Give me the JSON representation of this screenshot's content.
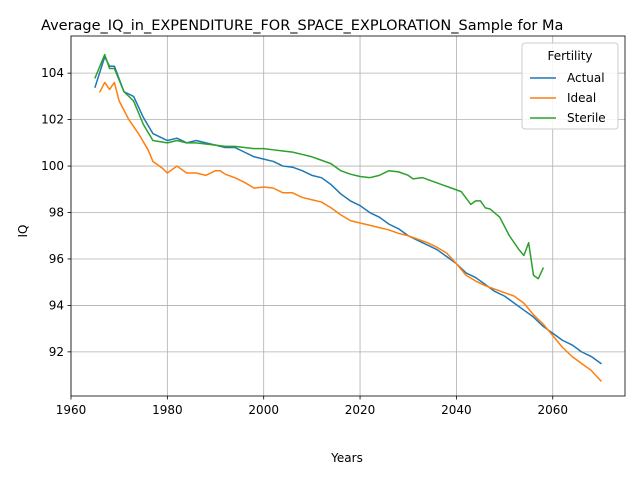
{
  "chart_data": {
    "type": "line",
    "title": "Average_IQ_in_EXPENDITURE_FOR_SPACE_EXPLORATION_Sample for Ma",
    "xlabel": "Years",
    "ylabel": "IQ",
    "xlim": [
      1960,
      2075
    ],
    "ylim": [
      90.1,
      105.6
    ],
    "xticks": [
      1960,
      1980,
      2000,
      2020,
      2040,
      2060
    ],
    "yticks": [
      92,
      94,
      96,
      98,
      100,
      102,
      104
    ],
    "grid": true,
    "legend": {
      "title": "Fertility",
      "position": "top-right"
    },
    "series": [
      {
        "name": "Actual",
        "color": "#1f77b4",
        "x": [
          1965,
          1967,
          1968,
          1969,
          1971,
          1973,
          1975,
          1977,
          1980,
          1982,
          1984,
          1986,
          1988,
          1990,
          1992,
          1994,
          1996,
          1998,
          2000,
          2002,
          2004,
          2006,
          2008,
          2010,
          2012,
          2014,
          2016,
          2018,
          2020,
          2022,
          2024,
          2026,
          2028,
          2030,
          2032,
          2034,
          2036,
          2038,
          2040,
          2042,
          2044,
          2046,
          2048,
          2050,
          2052,
          2054,
          2056,
          2058,
          2060,
          2062,
          2064,
          2066,
          2068,
          2070
        ],
        "y": [
          103.4,
          104.7,
          104.3,
          104.3,
          103.2,
          103.0,
          102.1,
          101.4,
          101.1,
          101.2,
          101.0,
          101.1,
          101.0,
          100.9,
          100.8,
          100.8,
          100.6,
          100.4,
          100.3,
          100.2,
          100.0,
          99.95,
          99.8,
          99.6,
          99.5,
          99.2,
          98.8,
          98.5,
          98.3,
          98.0,
          97.8,
          97.5,
          97.3,
          97.0,
          96.8,
          96.6,
          96.4,
          96.1,
          95.8,
          95.4,
          95.2,
          94.9,
          94.6,
          94.4,
          94.1,
          93.8,
          93.5,
          93.1,
          92.8,
          92.5,
          92.3,
          92.0,
          91.8,
          91.5
        ]
      },
      {
        "name": "Ideal",
        "color": "#ff7f0e",
        "x": [
          1966,
          1967,
          1968,
          1969,
          1970,
          1972,
          1974,
          1976,
          1977,
          1979,
          1980,
          1982,
          1984,
          1986,
          1988,
          1990,
          1991,
          1992,
          1994,
          1996,
          1998,
          2000,
          2002,
          2004,
          2006,
          2008,
          2010,
          2012,
          2014,
          2016,
          2018,
          2020,
          2022,
          2024,
          2026,
          2028,
          2030,
          2032,
          2034,
          2036,
          2038,
          2040,
          2042,
          2044,
          2046,
          2048,
          2050,
          2052,
          2054,
          2056,
          2058,
          2060,
          2062,
          2064,
          2066,
          2068,
          2070
        ],
        "y": [
          103.2,
          103.6,
          103.3,
          103.6,
          102.8,
          102.0,
          101.4,
          100.7,
          100.2,
          99.9,
          99.7,
          100.0,
          99.7,
          99.7,
          99.6,
          99.8,
          99.8,
          99.65,
          99.5,
          99.3,
          99.05,
          99.1,
          99.05,
          98.85,
          98.85,
          98.65,
          98.55,
          98.45,
          98.2,
          97.9,
          97.65,
          97.55,
          97.45,
          97.35,
          97.25,
          97.1,
          97.0,
          96.85,
          96.7,
          96.5,
          96.25,
          95.8,
          95.3,
          95.05,
          94.85,
          94.7,
          94.55,
          94.4,
          94.1,
          93.6,
          93.2,
          92.7,
          92.2,
          91.8,
          91.5,
          91.2,
          90.75
        ]
      },
      {
        "name": "Sterile",
        "color": "#2ca02c",
        "x": [
          1965,
          1967,
          1968,
          1969,
          1971,
          1973,
          1975,
          1977,
          1980,
          1982,
          1984,
          1986,
          1988,
          1990,
          1992,
          1994,
          1996,
          1998,
          2000,
          2002,
          2004,
          2006,
          2008,
          2010,
          2012,
          2014,
          2016,
          2018,
          2020,
          2022,
          2024,
          2026,
          2028,
          2030,
          2031,
          2033,
          2035,
          2037,
          2039,
          2041,
          2043,
          2044,
          2045,
          2046,
          2047,
          2049,
          2051,
          2053,
          2054,
          2055,
          2056,
          2057,
          2058
        ],
        "y": [
          103.8,
          104.8,
          104.2,
          104.2,
          103.2,
          102.8,
          101.8,
          101.1,
          101.0,
          101.1,
          101.0,
          101.0,
          100.95,
          100.9,
          100.85,
          100.85,
          100.8,
          100.75,
          100.75,
          100.7,
          100.65,
          100.6,
          100.5,
          100.4,
          100.25,
          100.1,
          99.8,
          99.65,
          99.55,
          99.5,
          99.6,
          99.8,
          99.75,
          99.6,
          99.45,
          99.5,
          99.35,
          99.2,
          99.05,
          98.9,
          98.35,
          98.5,
          98.5,
          98.2,
          98.15,
          97.8,
          97.0,
          96.4,
          96.15,
          96.7,
          95.3,
          95.15,
          95.6
        ]
      }
    ]
  }
}
